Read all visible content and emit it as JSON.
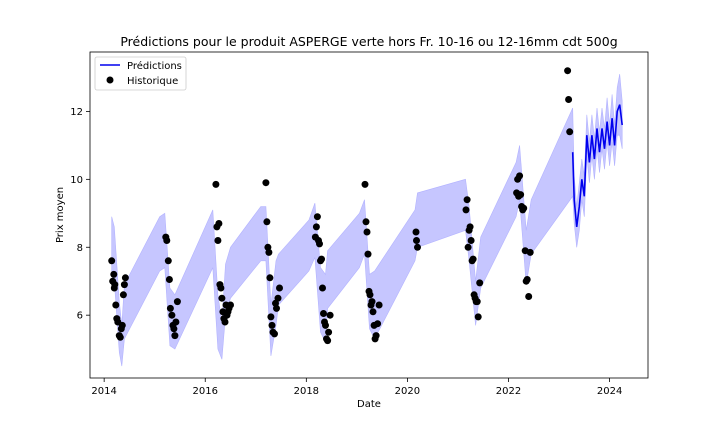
{
  "chart_data": {
    "type": "line",
    "title": "Prédictions pour le produit ASPERGE verte hors Fr. 10-16 ou 12-16mm cdt 500g",
    "xlabel": "Date",
    "ylabel": "Prix moyen",
    "xlim": [
      2013.72,
      2024.76
    ],
    "ylim": [
      4.15,
      13.75
    ],
    "x_ticks": [
      2014,
      2016,
      2018,
      2020,
      2022,
      2024
    ],
    "y_ticks": [
      6,
      8,
      10,
      12
    ],
    "grid": false,
    "legend_position": "top-left",
    "colors": {
      "prediction": "#0000ee",
      "band": "#b3b3ff",
      "history": "#000000"
    },
    "series": [
      {
        "name": "Prédictions",
        "kind": "line",
        "x": [
          2023.27,
          2023.3,
          2023.35,
          2023.4,
          2023.45,
          2023.5,
          2023.55,
          2023.6,
          2023.65,
          2023.7,
          2023.75,
          2023.8,
          2023.85,
          2023.9,
          2023.95,
          2024.0,
          2024.05,
          2024.1,
          2024.15,
          2024.2,
          2024.25
        ],
        "y": [
          10.8,
          9.4,
          8.6,
          9.2,
          10.0,
          9.5,
          11.3,
          10.5,
          11.3,
          10.6,
          11.5,
          10.8,
          11.5,
          10.9,
          11.7,
          11.0,
          11.8,
          11.0,
          12.0,
          12.2,
          11.6
        ]
      },
      {
        "name": "Historique",
        "kind": "scatter",
        "x": [
          2014.15,
          2014.17,
          2014.19,
          2014.2,
          2014.21,
          2014.23,
          2014.25,
          2014.27,
          2014.3,
          2014.32,
          2014.34,
          2014.36,
          2014.38,
          2014.4,
          2014.42,
          2015.22,
          2015.24,
          2015.27,
          2015.29,
          2015.31,
          2015.34,
          2015.36,
          2015.38,
          2015.4,
          2015.42,
          2015.45,
          2016.21,
          2016.23,
          2016.25,
          2016.27,
          2016.29,
          2016.31,
          2016.33,
          2016.35,
          2016.37,
          2016.39,
          2016.41,
          2016.43,
          2016.45,
          2016.47,
          2016.5,
          2017.2,
          2017.22,
          2017.24,
          2017.26,
          2017.28,
          2017.3,
          2017.32,
          2017.34,
          2017.37,
          2017.39,
          2017.41,
          2017.44,
          2017.47,
          2018.18,
          2018.2,
          2018.22,
          2018.24,
          2018.26,
          2018.28,
          2018.3,
          2018.32,
          2018.34,
          2018.36,
          2018.38,
          2018.4,
          2018.42,
          2018.44,
          2018.47,
          2019.16,
          2019.18,
          2019.2,
          2019.22,
          2019.24,
          2019.26,
          2019.28,
          2019.3,
          2019.32,
          2019.34,
          2019.36,
          2019.38,
          2019.41,
          2019.44,
          2020.17,
          2020.18,
          2020.2,
          2021.16,
          2021.18,
          2021.2,
          2021.22,
          2021.24,
          2021.26,
          2021.28,
          2021.3,
          2021.32,
          2021.34,
          2021.36,
          2021.38,
          2021.4,
          2021.43,
          2022.16,
          2022.18,
          2022.2,
          2022.22,
          2022.24,
          2022.26,
          2022.28,
          2022.3,
          2022.33,
          2022.35,
          2022.37,
          2022.4,
          2022.43,
          2023.17,
          2023.19,
          2023.21
        ],
        "y": [
          7.6,
          7.0,
          7.2,
          6.8,
          6.9,
          6.3,
          5.9,
          5.8,
          5.4,
          5.35,
          5.6,
          5.7,
          6.6,
          6.9,
          7.1,
          8.3,
          8.2,
          7.6,
          7.05,
          6.2,
          6.0,
          5.7,
          5.6,
          5.4,
          5.8,
          6.4,
          9.85,
          8.6,
          8.2,
          8.7,
          6.9,
          6.8,
          6.5,
          6.1,
          5.9,
          5.8,
          6.3,
          6.0,
          6.1,
          6.2,
          6.3,
          9.9,
          8.75,
          8.0,
          7.85,
          7.1,
          5.95,
          5.7,
          5.5,
          5.45,
          6.35,
          6.2,
          6.5,
          6.8,
          8.3,
          8.6,
          8.9,
          8.2,
          8.1,
          7.6,
          7.65,
          6.8,
          6.05,
          5.8,
          5.7,
          5.3,
          5.25,
          5.5,
          6.0,
          9.85,
          8.75,
          8.45,
          7.8,
          6.7,
          6.6,
          6.3,
          6.4,
          6.1,
          5.7,
          5.3,
          5.4,
          5.75,
          6.3,
          8.45,
          8.2,
          8.0,
          9.1,
          9.4,
          8.0,
          8.5,
          8.6,
          8.2,
          7.6,
          7.65,
          6.6,
          6.5,
          6.4,
          6.4,
          5.95,
          6.95,
          9.6,
          10.0,
          9.5,
          10.1,
          9.55,
          9.2,
          9.1,
          9.15,
          7.9,
          7.0,
          7.05,
          6.55,
          7.85,
          13.2,
          12.35,
          11.4
        ]
      }
    ],
    "band": {
      "x": [
        2014.15,
        2014.2,
        2014.3,
        2014.35,
        2014.4,
        2015.1,
        2015.2,
        2015.3,
        2015.4,
        2016.15,
        2016.25,
        2016.33,
        2016.4,
        2016.5,
        2017.1,
        2017.2,
        2017.3,
        2017.4,
        2017.45,
        2018.05,
        2018.17,
        2018.28,
        2018.38,
        2018.42,
        2019.05,
        2019.15,
        2019.25,
        2019.35,
        2020.15,
        2020.2,
        2021.15,
        2021.22,
        2021.35,
        2021.45,
        2022.15,
        2022.22,
        2022.35,
        2022.45,
        2023.27,
        2023.3,
        2023.35,
        2023.4,
        2023.45,
        2023.5,
        2023.55,
        2023.6,
        2023.65,
        2023.7,
        2023.75,
        2023.8,
        2023.85,
        2023.9,
        2023.95,
        2024.0,
        2024.05,
        2024.1,
        2024.15,
        2024.2,
        2024.25
      ],
      "upper": [
        8.9,
        8.6,
        6.4,
        5.7,
        6.9,
        8.9,
        9.0,
        6.8,
        6.6,
        9.1,
        6.6,
        5.8,
        7.5,
        8.0,
        9.2,
        9.2,
        6.3,
        7.6,
        7.8,
        8.8,
        9.3,
        7.4,
        7.2,
        7.9,
        9.0,
        9.4,
        7.2,
        7.3,
        9.1,
        9.6,
        10.0,
        9.2,
        7.0,
        8.3,
        10.5,
        11.0,
        8.5,
        9.4,
        12.1,
        10.1,
        9.2,
        9.9,
        10.6,
        10.1,
        11.9,
        11.1,
        11.9,
        11.2,
        12.1,
        11.4,
        12.1,
        11.5,
        12.4,
        11.6,
        12.5,
        11.6,
        12.7,
        13.1,
        12.3
      ],
      "lower": [
        7.3,
        7.0,
        4.9,
        4.5,
        5.3,
        7.3,
        7.4,
        5.1,
        5.0,
        7.4,
        5.0,
        4.7,
        6.0,
        6.5,
        7.6,
        7.6,
        4.8,
        5.7,
        6.3,
        7.3,
        7.7,
        5.5,
        5.2,
        6.2,
        7.4,
        7.8,
        5.6,
        5.3,
        7.6,
        8.0,
        8.5,
        7.6,
        5.7,
        6.8,
        8.9,
        9.4,
        6.9,
        7.8,
        9.5,
        8.7,
        8.0,
        8.5,
        9.4,
        8.9,
        10.7,
        9.9,
        10.7,
        10.0,
        10.9,
        10.2,
        10.9,
        10.3,
        11.1,
        10.4,
        11.1,
        10.4,
        11.3,
        11.3,
        10.9
      ]
    }
  }
}
